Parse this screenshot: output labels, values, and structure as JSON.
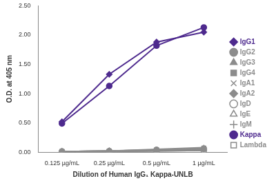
{
  "chart_data": {
    "type": "line",
    "x_label": "Dilution of Human IgG₁ Kappa-UNLB",
    "y_label": "O.D. at 405 nm",
    "categories": [
      "0.125 µg/mL",
      "0.25 µg/mL",
      "0.5 µg/mL",
      "1 µg/mL"
    ],
    "ylim": [
      0,
      2.5
    ],
    "yticks": [
      {
        "value": 0,
        "label": "0.00"
      },
      {
        "value": 0.5,
        "label": "0.50"
      },
      {
        "value": 1,
        "label": "1.00"
      },
      {
        "value": 1.5,
        "label": "1.50"
      },
      {
        "value": 2,
        "label": "2.00"
      },
      {
        "value": 2.5,
        "label": "2.50"
      }
    ],
    "grid": false,
    "legend": "right",
    "series": [
      {
        "name": "IgG1",
        "color": "#4e2a8e",
        "marker": "diamond",
        "values": [
          0.52,
          1.33,
          1.88,
          2.05
        ]
      },
      {
        "name": "IgG2",
        "color": "#8c8c8c",
        "marker": "circle",
        "values": [
          0.01,
          0.02,
          0.04,
          0.06
        ]
      },
      {
        "name": "IgG3",
        "color": "#8c8c8c",
        "marker": "triangle",
        "values": [
          0.01,
          0.02,
          0.03,
          0.05
        ]
      },
      {
        "name": "IgG4",
        "color": "#8c8c8c",
        "marker": "square",
        "values": [
          0.01,
          0.02,
          0.04,
          0.07
        ]
      },
      {
        "name": "IgA1",
        "color": "#8c8c8c",
        "marker": "cross",
        "values": [
          0.01,
          0.01,
          0.03,
          0.04
        ]
      },
      {
        "name": "IgA2",
        "color": "#8c8c8c",
        "marker": "diamond",
        "values": [
          0.01,
          0.02,
          0.03,
          0.05
        ]
      },
      {
        "name": "IgD",
        "color": "#8c8c8c",
        "marker": "circle-open",
        "values": [
          0.01,
          0.01,
          0.02,
          0.03
        ]
      },
      {
        "name": "IgE",
        "color": "#8c8c8c",
        "marker": "triangle-open",
        "values": [
          0.01,
          0.02,
          0.03,
          0.04
        ]
      },
      {
        "name": "IgM",
        "color": "#8c8c8c",
        "marker": "plus",
        "values": [
          0.01,
          0.02,
          0.05,
          0.08
        ]
      },
      {
        "name": "Kappa",
        "color": "#4e2a8e",
        "marker": "circle",
        "values": [
          0.49,
          1.13,
          1.82,
          2.13
        ]
      },
      {
        "name": "Lambda",
        "color": "#8c8c8c",
        "marker": "square-open",
        "values": [
          0.01,
          0.01,
          0.02,
          0.03
        ]
      }
    ]
  }
}
